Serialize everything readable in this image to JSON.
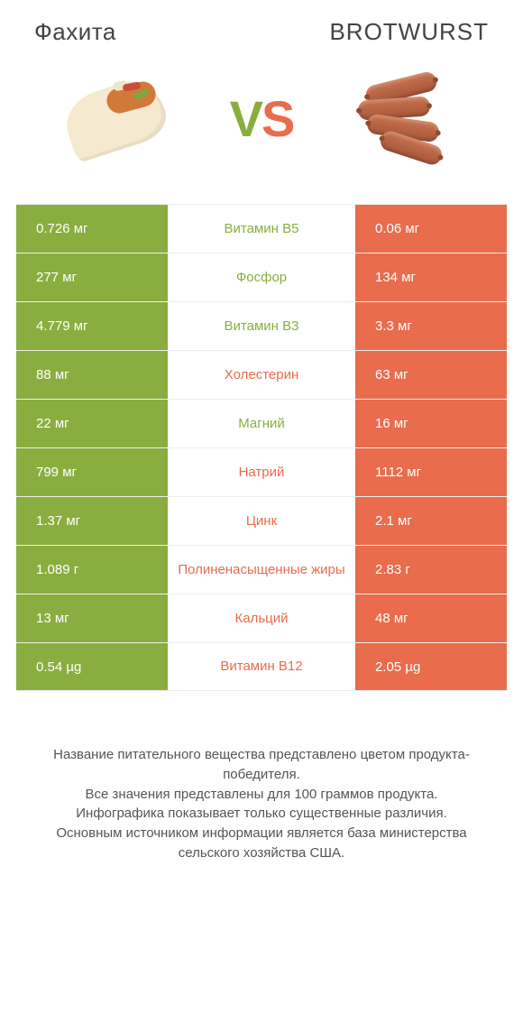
{
  "colors": {
    "left": "#8aad3f",
    "right": "#e96c4c",
    "row_bg": "#ffffff",
    "text_dark": "#444444"
  },
  "header": {
    "left_title": "Фахита",
    "right_title": "BROTWURST"
  },
  "vs": {
    "v": "V",
    "s": "S"
  },
  "rows": [
    {
      "label": "Витамин B5",
      "left": "0.726 мг",
      "right": "0.06 мг",
      "winner": "left"
    },
    {
      "label": "Фосфор",
      "left": "277 мг",
      "right": "134 мг",
      "winner": "left"
    },
    {
      "label": "Витамин B3",
      "left": "4.779 мг",
      "right": "3.3 мг",
      "winner": "left"
    },
    {
      "label": "Холестерин",
      "left": "88 мг",
      "right": "63 мг",
      "winner": "right"
    },
    {
      "label": "Магний",
      "left": "22 мг",
      "right": "16 мг",
      "winner": "left"
    },
    {
      "label": "Натрий",
      "left": "799 мг",
      "right": "1112 мг",
      "winner": "right"
    },
    {
      "label": "Цинк",
      "left": "1.37 мг",
      "right": "2.1 мг",
      "winner": "right"
    },
    {
      "label": "Полиненасыщенные жиры",
      "left": "1.089 г",
      "right": "2.83 г",
      "winner": "right"
    },
    {
      "label": "Кальций",
      "left": "13 мг",
      "right": "48 мг",
      "winner": "right"
    },
    {
      "label": "Витамин B12",
      "left": "0.54 µg",
      "right": "2.05 µg",
      "winner": "right"
    }
  ],
  "footer": {
    "line1": "Название питательного вещества представлено цветом продукта-победителя.",
    "line2": "Все значения представлены для 100 граммов продукта.",
    "line3": "Инфографика показывает только существенные различия.",
    "line4": "Основным источником информации является база министерства сельского хозяйства США."
  }
}
